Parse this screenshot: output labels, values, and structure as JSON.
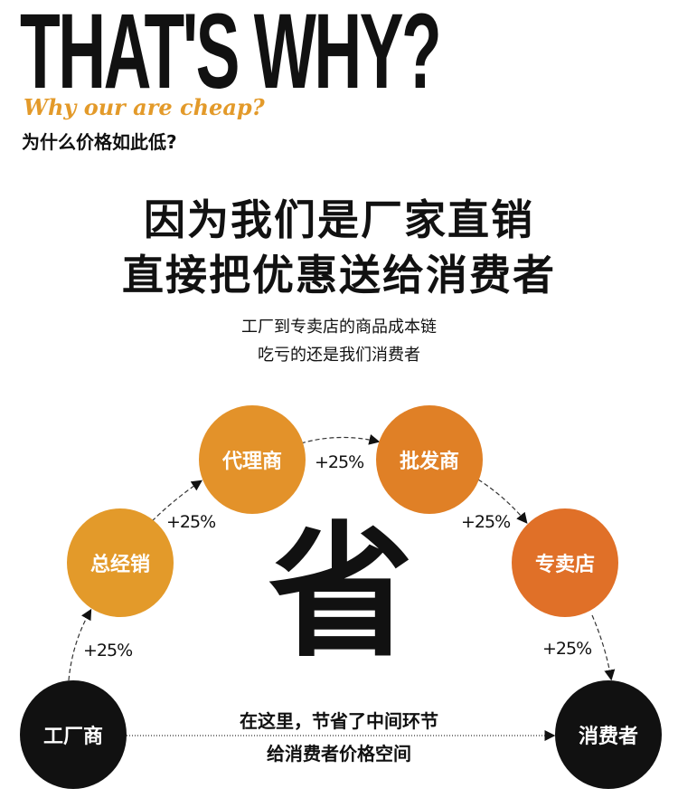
{
  "header": {
    "title": "THAT'S WHY?",
    "subtitle_en": "Why our are cheap?",
    "subtitle_cn": "为什么价格如此低?"
  },
  "headline": {
    "line1": "因为我们是厂家直销",
    "line2": "直接把优惠送给消费者"
  },
  "subtext": {
    "line1": "工厂到专卖店的商品成本链",
    "line2": "吃亏的还是我们消费者"
  },
  "chain": {
    "nodes": [
      {
        "label": "工厂商",
        "color": "#111111"
      },
      {
        "label": "总经销",
        "color": "#e39a2a"
      },
      {
        "label": "代理商",
        "color": "#e3922a"
      },
      {
        "label": "批发商",
        "color": "#e08026"
      },
      {
        "label": "专卖店",
        "color": "#e07028"
      },
      {
        "label": "消费者",
        "color": "#111111"
      }
    ],
    "markups": [
      "+25%",
      "+25%",
      "+25%",
      "+25%",
      "+25%"
    ]
  },
  "center_char": "省",
  "bottom": {
    "line1": "在这里，节省了中间环节",
    "line2": "给消费者价格空间"
  },
  "colors": {
    "accent": "#e39a2a"
  }
}
